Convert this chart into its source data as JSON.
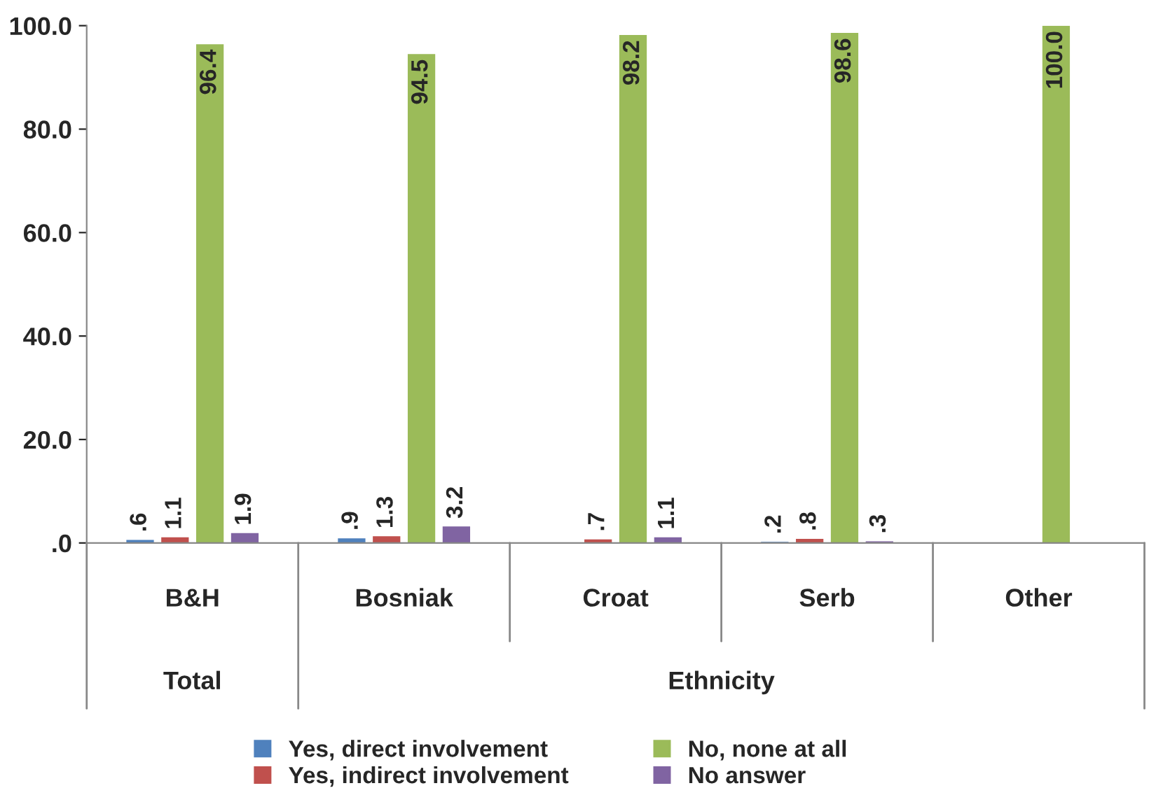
{
  "chart_data": {
    "type": "bar",
    "categories": [
      "B&H",
      "Bosniak",
      "Croat",
      "Serb",
      "Other"
    ],
    "series": [
      {
        "name": "Yes, direct involvement",
        "color": "#4f81bd",
        "values": [
          0.6,
          0.9,
          null,
          0.2,
          null
        ],
        "value_labels": [
          ".6",
          ".9",
          null,
          ".2",
          null
        ]
      },
      {
        "name": "Yes, indirect involvement",
        "color": "#c0504d",
        "values": [
          1.1,
          1.3,
          0.7,
          0.8,
          null
        ],
        "value_labels": [
          "1.1",
          "1.3",
          ".7",
          ".8",
          null
        ]
      },
      {
        "name": "No, none at all",
        "color": "#9bbb59",
        "values": [
          96.4,
          94.5,
          98.2,
          98.6,
          100.0
        ],
        "value_labels": [
          "96.4",
          "94.5",
          "98.2",
          "98.6",
          "100.0"
        ]
      },
      {
        "name": "No answer",
        "color": "#8064a2",
        "values": [
          1.9,
          3.2,
          1.1,
          0.3,
          null
        ],
        "value_labels": [
          "1.9",
          "3.2",
          "1.1",
          ".3",
          null
        ]
      }
    ],
    "ylim": [
      0,
      100
    ],
    "yticks": [
      {
        "value": 0,
        "label": ".0"
      },
      {
        "value": 20,
        "label": "20.0"
      },
      {
        "value": 40,
        "label": "40.0"
      },
      {
        "value": 60,
        "label": "60.0"
      },
      {
        "value": 80,
        "label": "80.0"
      },
      {
        "value": 100,
        "label": "100.0"
      }
    ],
    "annotations": [
      "Total",
      "Ethnicity"
    ],
    "legend": "bottom"
  }
}
